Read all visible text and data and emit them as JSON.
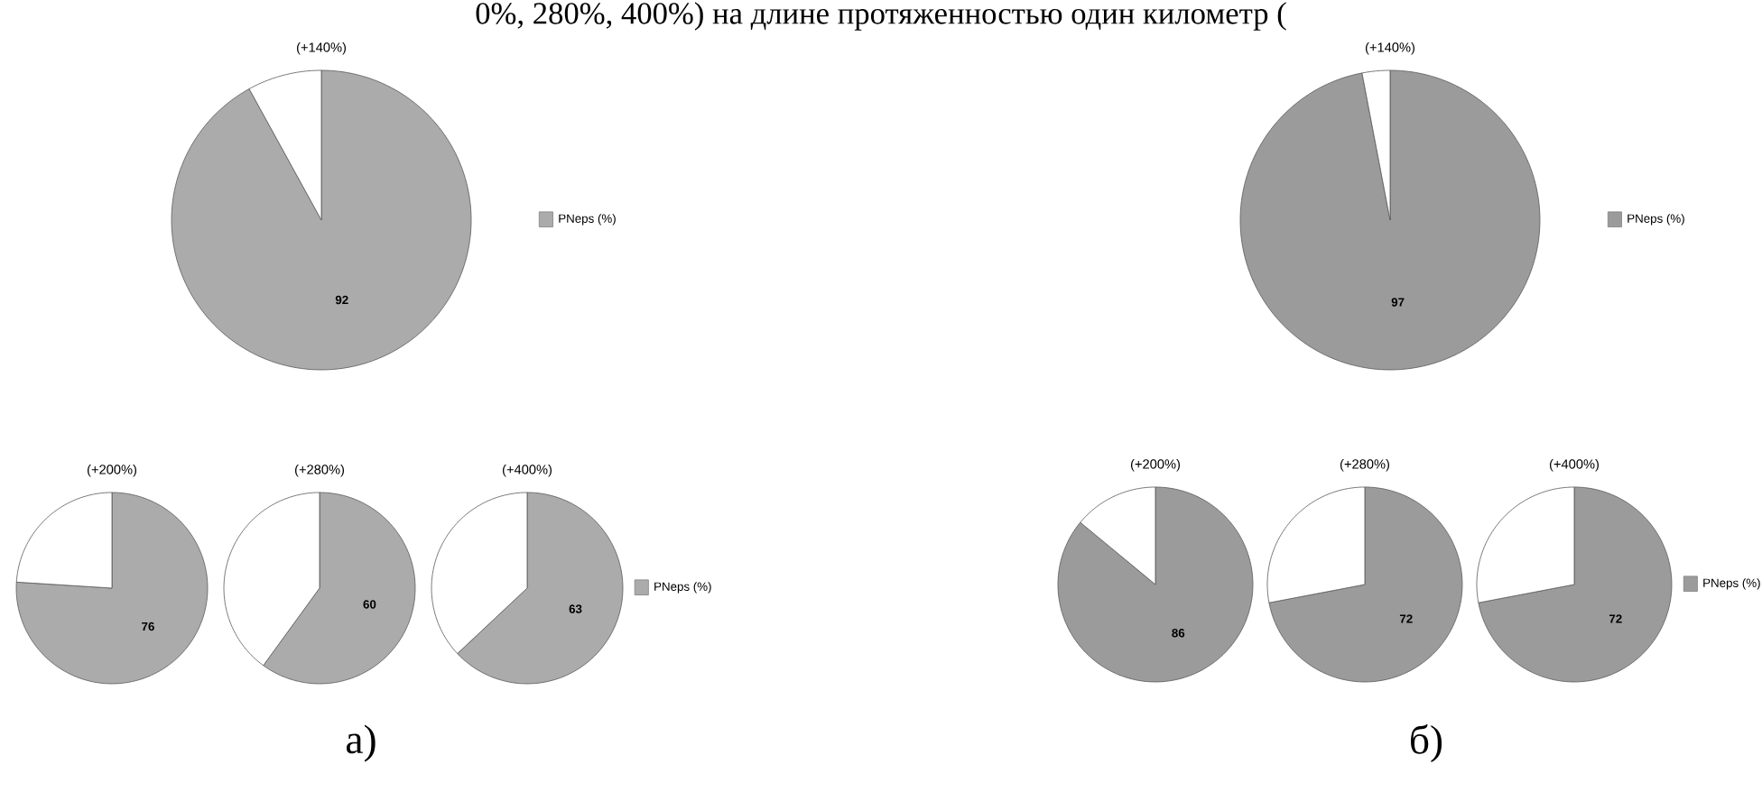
{
  "chart_data": [
    {
      "type": "pie",
      "title": "(+140%)",
      "categories": [
        "PNeps (%)",
        null
      ],
      "values": [
        92,
        8
      ],
      "colors": [
        "#ababab",
        "#ffffff"
      ],
      "value_labels": [
        "92",
        null
      ],
      "legend": "right",
      "annotations": [
        "0%, 280%, 400%) на длине протяженностью один километр (",
        "а)"
      ]
    },
    {
      "type": "pie",
      "title": "(+200%)",
      "categories": [
        null,
        null
      ],
      "values": [
        76,
        24
      ],
      "colors": [
        "#ababab",
        "#ffffff"
      ],
      "value_labels": [
        "76",
        null
      ]
    },
    {
      "type": "pie",
      "title": "(+280%)",
      "categories": [
        null,
        null
      ],
      "values": [
        60,
        40
      ],
      "colors": [
        "#ababab",
        "#ffffff"
      ],
      "value_labels": [
        "60",
        null
      ]
    },
    {
      "type": "pie",
      "title": "(+400%)",
      "categories": [
        "PNeps (%)",
        null
      ],
      "values": [
        63,
        37
      ],
      "colors": [
        "#ababab",
        "#ffffff"
      ],
      "value_labels": [
        "63",
        null
      ],
      "legend": "right"
    },
    {
      "type": "pie",
      "title": "(+140%)",
      "categories": [
        "PNeps (%)",
        null
      ],
      "values": [
        97,
        3
      ],
      "colors": [
        "#9b9b9b",
        "#ffffff"
      ],
      "value_labels": [
        "97",
        null
      ],
      "legend": "right",
      "annotations": [
        "б)"
      ]
    },
    {
      "type": "pie",
      "title": "(+200%)",
      "categories": [
        null,
        null
      ],
      "values": [
        86,
        14
      ],
      "colors": [
        "#9b9b9b",
        "#ffffff"
      ],
      "value_labels": [
        "86",
        null
      ]
    },
    {
      "type": "pie",
      "title": "(+280%)",
      "categories": [
        null,
        null
      ],
      "values": [
        72,
        28
      ],
      "colors": [
        "#9b9b9b",
        "#ffffff"
      ],
      "value_labels": [
        "72",
        null
      ]
    },
    {
      "type": "pie",
      "title": "(+400%)",
      "categories": [
        "PNeps (%)",
        null
      ],
      "values": [
        72,
        28
      ],
      "colors": [
        "#9b9b9b",
        "#ffffff"
      ],
      "value_labels": [
        "72",
        null
      ],
      "legend": "right"
    }
  ]
}
